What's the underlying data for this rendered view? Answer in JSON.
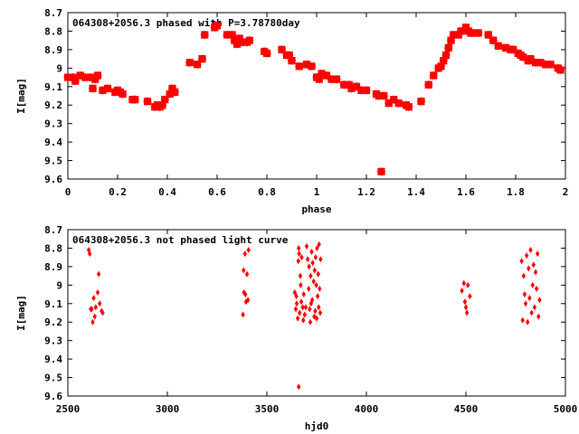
{
  "colors": {
    "points": "#ff0000",
    "axes": "#000000",
    "background": "#ffffff"
  },
  "chart_data": [
    {
      "type": "scatter",
      "title": "064308+2056.3 phased with P=3.78780day",
      "xlabel": "phase",
      "ylabel": "I[mag]",
      "xlim": [
        0,
        2
      ],
      "ylim": [
        9.6,
        8.7
      ],
      "y_inverted": true,
      "grid": false,
      "marker": "filled-star",
      "xticks": [
        "0",
        "0.2",
        "0.4",
        "0.6",
        "0.8",
        "1",
        "1.2",
        "1.4",
        "1.6",
        "1.8",
        "2"
      ],
      "yticks": [
        "8.7",
        "8.8",
        "8.9",
        "9",
        "9.1",
        "9.2",
        "9.3",
        "9.4",
        "9.5",
        "9.6"
      ],
      "series": [
        {
          "x": [
            0.0,
            0.02,
            0.03,
            0.05,
            0.07,
            0.09,
            0.1,
            0.11,
            0.12,
            0.14,
            0.16,
            0.19,
            0.2,
            0.21,
            0.22,
            0.26,
            0.27,
            0.32,
            0.35,
            0.36,
            0.37,
            0.38,
            0.39,
            0.41,
            0.42,
            0.43,
            0.49,
            0.52,
            0.54,
            0.55,
            0.59,
            0.6,
            0.64,
            0.66,
            0.67,
            0.68,
            0.69,
            0.7,
            0.72,
            0.73,
            0.79,
            0.8,
            0.86,
            0.88,
            0.89,
            0.9,
            0.93,
            0.96,
            0.98,
            1.0,
            1.01,
            1.02,
            1.04,
            1.06,
            1.08,
            1.11,
            1.13,
            1.14,
            1.16,
            1.18,
            1.2,
            1.24,
            1.25,
            1.26,
            1.27,
            1.29,
            1.31,
            1.33,
            1.36,
            1.37,
            1.42,
            1.45,
            1.47,
            1.49,
            1.5,
            1.51,
            1.52,
            1.53,
            1.54,
            1.55,
            1.57,
            1.58,
            1.6,
            1.61,
            1.62,
            1.63,
            1.65,
            1.69,
            1.71,
            1.73,
            1.76,
            1.78,
            1.79,
            1.81,
            1.82,
            1.83,
            1.85,
            1.86,
            1.88,
            1.9,
            1.92,
            1.94,
            1.97,
            1.98
          ],
          "y": [
            9.05,
            9.05,
            9.07,
            9.04,
            9.05,
            9.05,
            9.11,
            9.06,
            9.04,
            9.12,
            9.11,
            9.13,
            9.12,
            9.13,
            9.14,
            9.17,
            9.17,
            9.18,
            9.21,
            9.2,
            9.21,
            9.2,
            9.17,
            9.14,
            9.11,
            9.13,
            8.97,
            8.98,
            8.95,
            8.82,
            8.78,
            8.77,
            8.82,
            8.82,
            8.85,
            8.87,
            8.84,
            8.86,
            8.86,
            8.85,
            8.91,
            8.92,
            8.9,
            8.93,
            8.93,
            8.96,
            8.99,
            8.98,
            8.99,
            9.05,
            9.06,
            9.03,
            9.04,
            9.06,
            9.06,
            9.09,
            9.09,
            9.11,
            9.1,
            9.12,
            9.12,
            9.14,
            9.15,
            9.56,
            9.15,
            9.19,
            9.17,
            9.19,
            9.2,
            9.21,
            9.18,
            9.09,
            9.04,
            9.0,
            8.99,
            8.96,
            8.93,
            8.89,
            8.85,
            8.82,
            8.82,
            8.8,
            8.78,
            8.8,
            8.81,
            8.81,
            8.81,
            8.82,
            8.85,
            8.88,
            8.89,
            8.9,
            8.9,
            8.92,
            8.93,
            8.94,
            8.96,
            8.95,
            8.97,
            8.97,
            8.98,
            8.98,
            9.0,
            9.01
          ]
        }
      ]
    },
    {
      "type": "scatter",
      "title": "064308+2056.3 not phased light curve",
      "xlabel": "hjd0",
      "ylabel": "I[mag]",
      "xlim": [
        2500,
        5000
      ],
      "ylim": [
        9.6,
        8.7
      ],
      "y_inverted": true,
      "grid": false,
      "marker": "diamond",
      "xticks": [
        "2500",
        "3000",
        "3500",
        "4000",
        "4500",
        "5000"
      ],
      "yticks": [
        "8.7",
        "8.8",
        "8.9",
        "9",
        "9.1",
        "9.2",
        "9.3",
        "9.4",
        "9.5",
        "9.6"
      ],
      "series": [
        {
          "x": [
            2605,
            2610,
            2615,
            2620,
            2625,
            2630,
            2635,
            2640,
            2650,
            2655,
            2660,
            2670,
            2675,
            3380,
            3383,
            3385,
            3390,
            3392,
            3395,
            3400,
            3405,
            3408,
            3640,
            3645,
            3648,
            3650,
            3655,
            3658,
            3660,
            3662,
            3665,
            3668,
            3670,
            3673,
            3675,
            3680,
            3683,
            3685,
            3690,
            3695,
            3700,
            3705,
            3710,
            3712,
            3715,
            3718,
            3720,
            3722,
            3725,
            3728,
            3730,
            3735,
            3738,
            3740,
            3743,
            3745,
            3748,
            3750,
            3752,
            3755,
            3758,
            3760,
            3762,
            3765,
            3768,
            3770,
            3660,
            4480,
            4490,
            4495,
            4500,
            4505,
            4510,
            4520,
            4780,
            4785,
            4790,
            4795,
            4800,
            4805,
            4810,
            4815,
            4820,
            4825,
            4830,
            4835,
            4840,
            4845,
            4850,
            4855,
            4860,
            4865,
            4870
          ],
          "y": [
            8.81,
            8.83,
            9.13,
            9.13,
            9.2,
            9.07,
            9.17,
            9.12,
            9.04,
            8.94,
            9.1,
            9.14,
            9.15,
            9.16,
            8.92,
            9.04,
            8.83,
            9.05,
            9.09,
            8.94,
            9.08,
            8.81,
            9.04,
            9.13,
            9.06,
            9.1,
            9.18,
            8.87,
            8.8,
            8.83,
            9.15,
            8.95,
            9.0,
            9.09,
            8.85,
            9.12,
            9.19,
            9.05,
            9.16,
            9.12,
            8.79,
            8.86,
            9.02,
            8.9,
            9.13,
            9.2,
            8.95,
            9.1,
            8.82,
            9.08,
            8.88,
            8.98,
            9.17,
            8.92,
            9.14,
            8.85,
            9.0,
            9.18,
            8.8,
            9.06,
            8.94,
            9.12,
            8.78,
            9.02,
            9.15,
            8.86,
            9.55,
            9.03,
            8.99,
            9.09,
            9.12,
            9.15,
            9.0,
            9.06,
            8.87,
            9.19,
            8.95,
            9.05,
            9.1,
            8.84,
            9.2,
            8.91,
            9.07,
            8.81,
            9.15,
            9.0,
            8.89,
            9.12,
            8.93,
            9.02,
            8.83,
            9.17,
            9.08
          ]
        }
      ]
    }
  ]
}
